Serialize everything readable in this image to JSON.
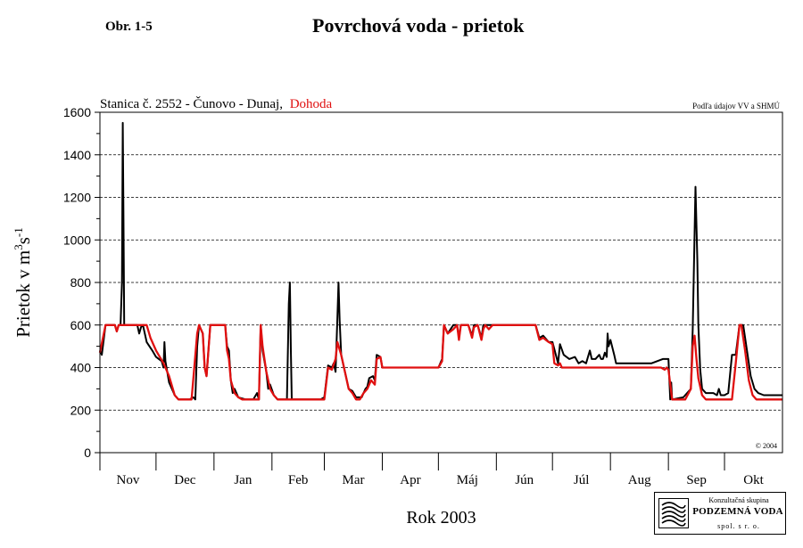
{
  "figure": {
    "label": "Obr. 1-5",
    "title": "Povrchová voda - prietok"
  },
  "chart_data": {
    "type": "line",
    "subtitle": "Stanica č. 2552 - Čunovo - Dunaj,",
    "subtitle_highlight": "Dohoda",
    "source_note": "Podľa údajov VV a SHMÚ",
    "copyright": "© 2004",
    "xlabel": "Rok 2003",
    "ylabel_parts": [
      "Prietok v m",
      "3",
      "s",
      "-1"
    ],
    "y_ticks": [
      0,
      200,
      400,
      600,
      800,
      1000,
      1200,
      1400,
      1600
    ],
    "ylim": [
      0,
      1600
    ],
    "xlim": [
      0,
      365
    ],
    "months": [
      {
        "label": "Nov",
        "start": 0,
        "end": 30
      },
      {
        "label": "Dec",
        "start": 30,
        "end": 61
      },
      {
        "label": "Jan",
        "start": 61,
        "end": 92
      },
      {
        "label": "Feb",
        "start": 92,
        "end": 120
      },
      {
        "label": "Mar",
        "start": 120,
        "end": 151
      },
      {
        "label": "Apr",
        "start": 151,
        "end": 181
      },
      {
        "label": "Máj",
        "start": 181,
        "end": 212
      },
      {
        "label": "Jún",
        "start": 212,
        "end": 242
      },
      {
        "label": "Júl",
        "start": 242,
        "end": 273
      },
      {
        "label": "Aug",
        "start": 273,
        "end": 304
      },
      {
        "label": "Sep",
        "start": 304,
        "end": 334
      },
      {
        "label": "Okt",
        "start": 334,
        "end": 365
      }
    ],
    "grid": "dashed horizontal",
    "series": [
      {
        "name": "",
        "color": "#000000",
        "points": [
          [
            0,
            480
          ],
          [
            1,
            460
          ],
          [
            3,
            600
          ],
          [
            8,
            600
          ],
          [
            9,
            570
          ],
          [
            10,
            600
          ],
          [
            11,
            600
          ],
          [
            11.8,
            800
          ],
          [
            12.2,
            1550
          ],
          [
            12.6,
            1100
          ],
          [
            13,
            600
          ],
          [
            17,
            600
          ],
          [
            20,
            600
          ],
          [
            21,
            560
          ],
          [
            22,
            590
          ],
          [
            23,
            600
          ],
          [
            24,
            560
          ],
          [
            25,
            520
          ],
          [
            28,
            480
          ],
          [
            30,
            450
          ],
          [
            33,
            430
          ],
          [
            34,
            400
          ],
          [
            34.5,
            520
          ],
          [
            35,
            430
          ],
          [
            37,
            330
          ],
          [
            40,
            270
          ],
          [
            42,
            250
          ],
          [
            48,
            250
          ],
          [
            50,
            260
          ],
          [
            51,
            250
          ],
          [
            52,
            500
          ],
          [
            53,
            600
          ],
          [
            55,
            560
          ],
          [
            56,
            400
          ],
          [
            57,
            360
          ],
          [
            58,
            480
          ],
          [
            59,
            600
          ],
          [
            60,
            600
          ],
          [
            67,
            600
          ],
          [
            68,
            500
          ],
          [
            69,
            480
          ],
          [
            70,
            340
          ],
          [
            71,
            280
          ],
          [
            72,
            300
          ],
          [
            74,
            260
          ],
          [
            78,
            250
          ],
          [
            82,
            250
          ],
          [
            84,
            280
          ],
          [
            85,
            250
          ],
          [
            86,
            600
          ],
          [
            87,
            480
          ],
          [
            89,
            380
          ],
          [
            90,
            300
          ],
          [
            91,
            320
          ],
          [
            93,
            270
          ],
          [
            95,
            250
          ],
          [
            100,
            250
          ],
          [
            101,
            700
          ],
          [
            101.6,
            800
          ],
          [
            102.1,
            480
          ],
          [
            102.6,
            250
          ],
          [
            108,
            250
          ],
          [
            118,
            250
          ],
          [
            120,
            260
          ],
          [
            122,
            410
          ],
          [
            124,
            400
          ],
          [
            125,
            420
          ],
          [
            126,
            380
          ],
          [
            127,
            640
          ],
          [
            127.6,
            800
          ],
          [
            128.2,
            620
          ],
          [
            129,
            460
          ],
          [
            131,
            380
          ],
          [
            133,
            300
          ],
          [
            135,
            290
          ],
          [
            137,
            260
          ],
          [
            140,
            260
          ],
          [
            142,
            300
          ],
          [
            143,
            310
          ],
          [
            144,
            350
          ],
          [
            146,
            360
          ],
          [
            147,
            340
          ],
          [
            148,
            460
          ],
          [
            150,
            450
          ],
          [
            151,
            400
          ],
          [
            181,
            400
          ],
          [
            183,
            440
          ],
          [
            184,
            600
          ],
          [
            186,
            560
          ],
          [
            189,
            600
          ],
          [
            191,
            600
          ],
          [
            192,
            540
          ],
          [
            193,
            600
          ],
          [
            197,
            600
          ],
          [
            199,
            550
          ],
          [
            200,
            600
          ],
          [
            202,
            600
          ],
          [
            204,
            540
          ],
          [
            205,
            600
          ],
          [
            206,
            600
          ],
          [
            209,
            600
          ],
          [
            212,
            600
          ],
          [
            215,
            600
          ],
          [
            230,
            600
          ],
          [
            233,
            600
          ],
          [
            235,
            540
          ],
          [
            237,
            550
          ],
          [
            240,
            520
          ],
          [
            242,
            520
          ],
          [
            245,
            420
          ],
          [
            246,
            510
          ],
          [
            248,
            460
          ],
          [
            251,
            440
          ],
          [
            254,
            450
          ],
          [
            256,
            420
          ],
          [
            258,
            430
          ],
          [
            260,
            420
          ],
          [
            262,
            480
          ],
          [
            263,
            440
          ],
          [
            265,
            440
          ],
          [
            267,
            460
          ],
          [
            268,
            440
          ],
          [
            269,
            440
          ],
          [
            270,
            470
          ],
          [
            271,
            450
          ],
          [
            271.5,
            560
          ],
          [
            272,
            500
          ],
          [
            273,
            530
          ],
          [
            275,
            460
          ],
          [
            276,
            420
          ],
          [
            281,
            420
          ],
          [
            285,
            420
          ],
          [
            290,
            420
          ],
          [
            295,
            420
          ],
          [
            298,
            430
          ],
          [
            301,
            440
          ],
          [
            303,
            440
          ],
          [
            304,
            440
          ],
          [
            305,
            250
          ],
          [
            305.5,
            330
          ],
          [
            306,
            250
          ],
          [
            312,
            260
          ],
          [
            316,
            300
          ],
          [
            317,
            580
          ],
          [
            318.5,
            1250
          ],
          [
            319.5,
            900
          ],
          [
            320,
            600
          ],
          [
            321,
            390
          ],
          [
            322,
            300
          ],
          [
            324,
            280
          ],
          [
            328,
            280
          ],
          [
            330,
            270
          ],
          [
            331,
            300
          ],
          [
            332,
            270
          ],
          [
            334,
            270
          ],
          [
            336,
            280
          ],
          [
            338,
            460
          ],
          [
            340,
            460
          ],
          [
            342,
            600
          ],
          [
            344,
            600
          ],
          [
            346,
            480
          ],
          [
            348,
            360
          ],
          [
            350,
            300
          ],
          [
            352,
            280
          ],
          [
            355,
            270
          ],
          [
            360,
            270
          ],
          [
            365,
            270
          ]
        ]
      },
      {
        "name": "Dohoda",
        "color": "#e01010",
        "points": [
          [
            0,
            470
          ],
          [
            3,
            600
          ],
          [
            8,
            600
          ],
          [
            9,
            570
          ],
          [
            10,
            600
          ],
          [
            25,
            600
          ],
          [
            27,
            540
          ],
          [
            30,
            480
          ],
          [
            32,
            450
          ],
          [
            34,
            420
          ],
          [
            37,
            360
          ],
          [
            40,
            270
          ],
          [
            42,
            250
          ],
          [
            49,
            250
          ],
          [
            52,
            560
          ],
          [
            53,
            600
          ],
          [
            55,
            560
          ],
          [
            56,
            400
          ],
          [
            57,
            360
          ],
          [
            58,
            480
          ],
          [
            59,
            600
          ],
          [
            67,
            600
          ],
          [
            68,
            480
          ],
          [
            69,
            440
          ],
          [
            70,
            340
          ],
          [
            72,
            280
          ],
          [
            74,
            260
          ],
          [
            76,
            250
          ],
          [
            85,
            250
          ],
          [
            86,
            600
          ],
          [
            87,
            500
          ],
          [
            89,
            380
          ],
          [
            91,
            300
          ],
          [
            93,
            270
          ],
          [
            95,
            250
          ],
          [
            120,
            250
          ],
          [
            122,
            400
          ],
          [
            124,
            390
          ],
          [
            126,
            440
          ],
          [
            127,
            520
          ],
          [
            129,
            460
          ],
          [
            131,
            380
          ],
          [
            133,
            300
          ],
          [
            135,
            280
          ],
          [
            137,
            250
          ],
          [
            139,
            250
          ],
          [
            141,
            280
          ],
          [
            143,
            300
          ],
          [
            145,
            340
          ],
          [
            147,
            320
          ],
          [
            148,
            440
          ],
          [
            150,
            450
          ],
          [
            151,
            400
          ],
          [
            181,
            400
          ],
          [
            183,
            430
          ],
          [
            184,
            600
          ],
          [
            186,
            560
          ],
          [
            189,
            580
          ],
          [
            191,
            600
          ],
          [
            192,
            530
          ],
          [
            193,
            600
          ],
          [
            197,
            600
          ],
          [
            199,
            540
          ],
          [
            200,
            590
          ],
          [
            202,
            600
          ],
          [
            204,
            530
          ],
          [
            205,
            580
          ],
          [
            206,
            600
          ],
          [
            208,
            580
          ],
          [
            210,
            600
          ],
          [
            230,
            600
          ],
          [
            233,
            600
          ],
          [
            235,
            530
          ],
          [
            237,
            540
          ],
          [
            240,
            520
          ],
          [
            242,
            510
          ],
          [
            243,
            420
          ],
          [
            245,
            410
          ],
          [
            246,
            420
          ],
          [
            247,
            400
          ],
          [
            300,
            400
          ],
          [
            302,
            390
          ],
          [
            303,
            400
          ],
          [
            304,
            390
          ],
          [
            306,
            250
          ],
          [
            307,
            250
          ],
          [
            313,
            250
          ],
          [
            316,
            300
          ],
          [
            317,
            500
          ],
          [
            318,
            550
          ],
          [
            319,
            440
          ],
          [
            320,
            350
          ],
          [
            322,
            270
          ],
          [
            324,
            250
          ],
          [
            338,
            250
          ],
          [
            340,
            420
          ],
          [
            342,
            600
          ],
          [
            343,
            600
          ],
          [
            345,
            480
          ],
          [
            347,
            340
          ],
          [
            349,
            270
          ],
          [
            351,
            250
          ],
          [
            365,
            250
          ]
        ]
      }
    ]
  },
  "logo": {
    "line1": "Konzultačná skupina",
    "line2": "PODZEMNÁ VODA",
    "line3": "spol. s r. o."
  }
}
